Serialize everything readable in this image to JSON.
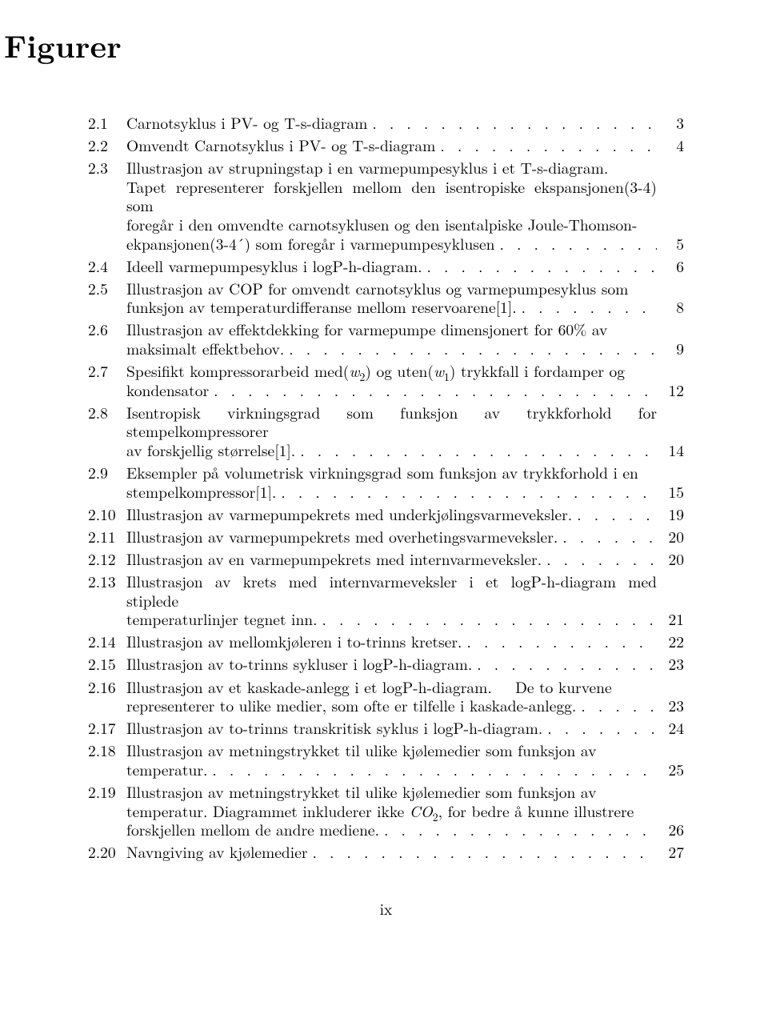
{
  "title": "Figurer",
  "page_label": "ix",
  "font": {
    "body_size_pt": 12,
    "title_size_pt": 24
  },
  "colors": {
    "text": "#000000",
    "background": "#ffffff"
  },
  "entries": [
    {
      "num": "2.1",
      "lines": [],
      "tail": "Carnotsyklus i PV- og T-s-diagram",
      "page": "3"
    },
    {
      "num": "2.2",
      "lines": [],
      "tail": "Omvendt Carnotsyklus i PV- og T-s-diagram",
      "page": "4"
    },
    {
      "num": "2.3",
      "lines": [
        "Illustrasjon av strupningstap i en varmepumpesyklus i et T-s-diagram.",
        "Tapet representerer forskjellen mellom den isentropiske ekspansjonen(3-4) som",
        "foregår i den omvendte carnotsyklusen og den isentalpiske Joule-Thomson-"
      ],
      "tail": "ekpansjonen(3-4´) som foregår i varmepumpesyklusen",
      "page": "5"
    },
    {
      "num": "2.4",
      "lines": [],
      "tail": "Ideell varmepumpesyklus i logP-h-diagram.",
      "page": "6"
    },
    {
      "num": "2.5",
      "lines": [
        "Illustrasjon av COP for omvendt carnotsyklus og varmepumpesyklus som"
      ],
      "tail": "funksjon av temperaturdifferanse mellom reservoarene[1].",
      "page": "8"
    },
    {
      "num": "2.6",
      "lines": [
        "Illustrasjon av effektdekking for varmepumpe dimensjonert for 60% av"
      ],
      "tail": "maksimalt effektbehov.",
      "page": "9"
    },
    {
      "num": "2.7",
      "lines": [
        "Spesifikt kompressorarbeid med(<span class=\"ital\">w</span><span class=\"sub\">2</span>) og uten(<span class=\"ital\">w</span><span class=\"sub\">1</span>) trykkfall i fordamper og"
      ],
      "tail": "kondensator",
      "page": "12"
    },
    {
      "num": "2.8",
      "lines": [
        "Isentropisk virkningsgrad som funksjon av trykkforhold for stempelkompressorer"
      ],
      "tail": "av forskjellig størrelse[1].",
      "page": "14"
    },
    {
      "num": "2.9",
      "lines": [
        "Eksempler på volumetrisk virkningsgrad som funksjon av trykkforhold i en"
      ],
      "tail": "stempelkompressor[1].",
      "page": "15"
    },
    {
      "num": "2.10",
      "lines": [],
      "tail": "Illustrasjon av varmepumpekrets med underkjølingsvarmeveksler.",
      "page": "19"
    },
    {
      "num": "2.11",
      "lines": [],
      "tail": "Illustrasjon av varmepumpekrets med overhetingsvarmeveksler.",
      "page": "20"
    },
    {
      "num": "2.12",
      "lines": [],
      "tail": "Illustrasjon av en varmepumpekrets med internvarmeveksler.",
      "page": "20"
    },
    {
      "num": "2.13",
      "lines": [
        "Illustrasjon av krets med internvarmeveksler i et logP-h-diagram med stiplede"
      ],
      "tail": "temperaturlinjer tegnet inn.",
      "page": "21"
    },
    {
      "num": "2.14",
      "lines": [],
      "tail": "Illustrasjon av mellomkjøleren i to-trinns kretser.",
      "page": "22"
    },
    {
      "num": "2.15",
      "lines": [],
      "tail": "Illustrasjon av to-trinns sykluser i logP-h-diagram.",
      "page": "23"
    },
    {
      "num": "2.16",
      "lines": [
        "Illustrasjon av et kaskade-anlegg i et logP-h-diagram.&nbsp;&nbsp;&nbsp;De to kurvene"
      ],
      "tail": "representerer to ulike medier, som ofte er tilfelle i kaskade-anlegg.",
      "page": "23"
    },
    {
      "num": "2.17",
      "lines": [],
      "tail": "Illustrasjon av to-trinns transkritisk syklus i logP-h-diagram.",
      "page": "24"
    },
    {
      "num": "2.18",
      "lines": [
        "Illustrasjon av metningstrykket til ulike kjølemedier som funksjon av"
      ],
      "tail": "temperatur.",
      "page": "25"
    },
    {
      "num": "2.19",
      "lines": [
        "Illustrasjon av metningstrykket til ulike kjølemedier som funksjon av",
        "temperatur. Diagrammet inkluderer ikke <span class=\"ital\">CO</span><span class=\"sub\">2</span>, for bedre å kunne illustrere"
      ],
      "tail": "forskjellen mellom de andre mediene.",
      "page": "26"
    },
    {
      "num": "2.20",
      "lines": [],
      "tail": "Navngiving av kjølemedier",
      "page": "27"
    }
  ]
}
